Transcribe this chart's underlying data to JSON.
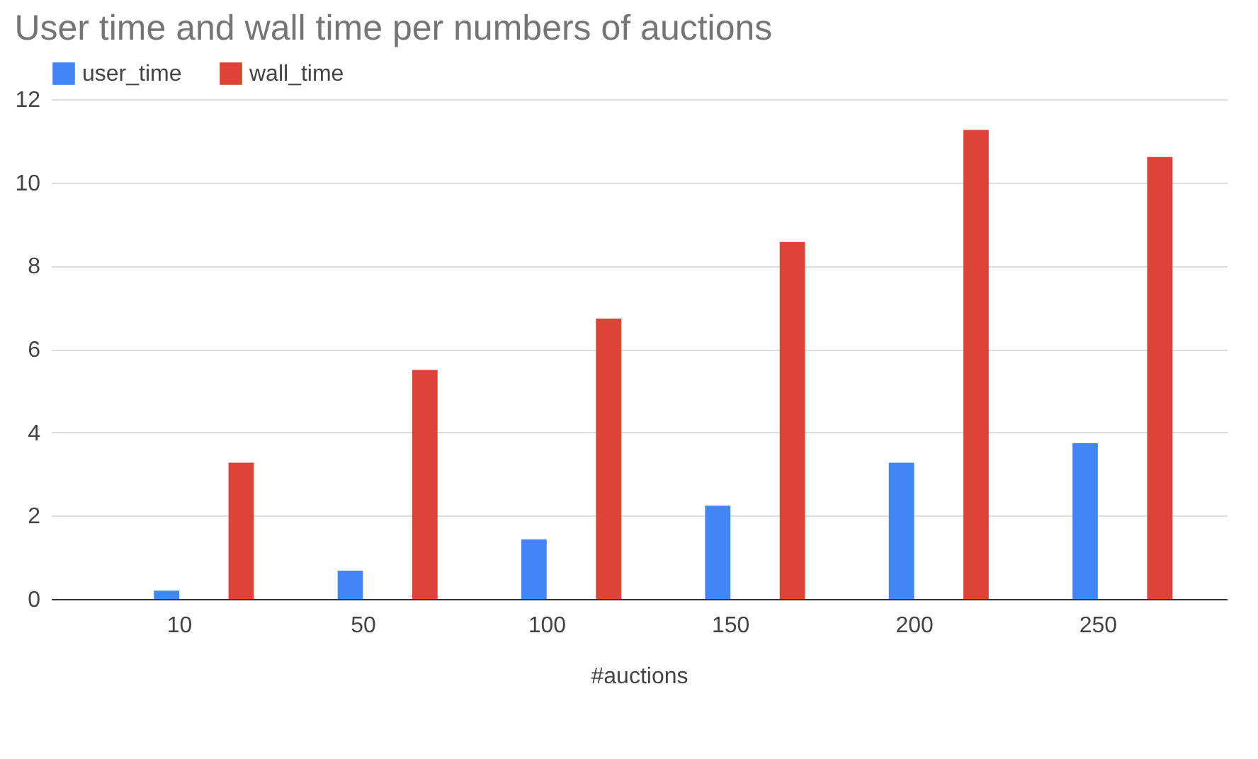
{
  "chart_data": {
    "type": "bar",
    "title": "User time and wall time per numbers of auctions",
    "xlabel": "#auctions",
    "categories": [
      "10",
      "50",
      "100",
      "150",
      "200",
      "250"
    ],
    "series": [
      {
        "name": "user_time",
        "color": "#4285f4",
        "values": [
          0.2,
          0.68,
          1.43,
          2.24,
          3.27,
          3.74
        ]
      },
      {
        "name": "wall_time",
        "color": "#db4437",
        "values": [
          3.27,
          5.5,
          6.73,
          8.57,
          11.26,
          10.61
        ]
      }
    ],
    "ylim": [
      0,
      12
    ],
    "yticks": [
      0,
      2,
      4,
      6,
      8,
      10,
      12
    ],
    "grid": "y",
    "legend": "top"
  }
}
